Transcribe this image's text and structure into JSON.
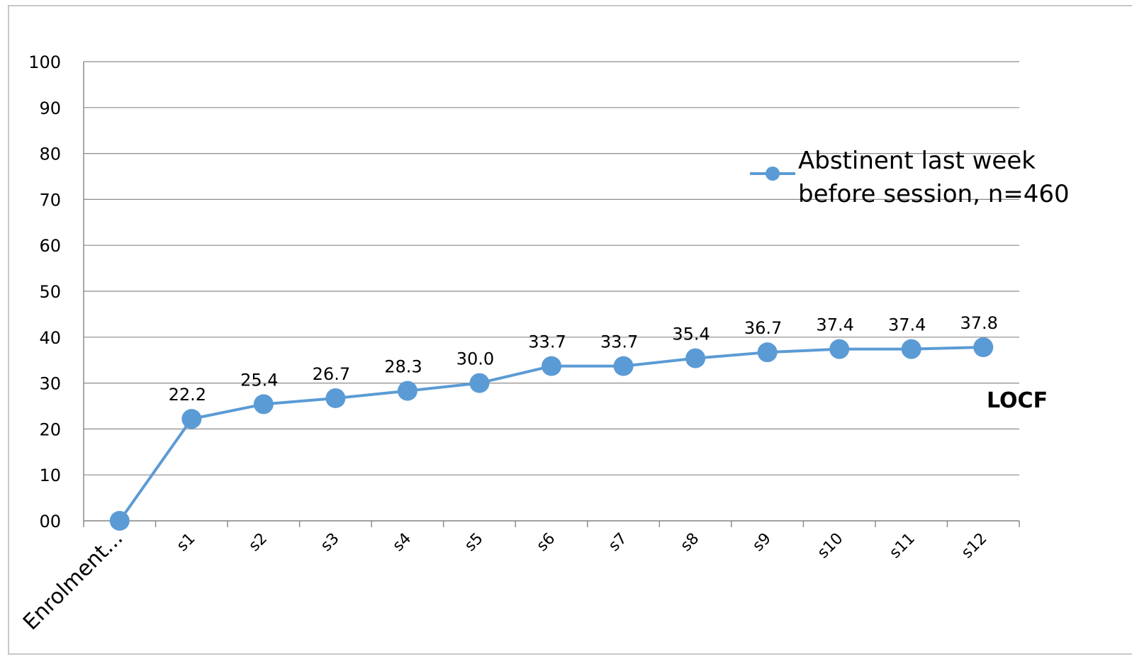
{
  "chart_data": {
    "type": "line",
    "categories": [
      "Enrolment...",
      "s1",
      "s2",
      "s3",
      "s4",
      "s5",
      "s6",
      "s7",
      "s8",
      "s9",
      "s10",
      "s11",
      "s12"
    ],
    "series": [
      {
        "name": "Abstinent last week before session, n=460",
        "values": [
          0,
          22.2,
          25.4,
          26.7,
          28.3,
          30.0,
          33.7,
          33.7,
          35.4,
          36.7,
          37.4,
          37.4,
          37.8
        ],
        "data_labels": [
          "",
          "22.2",
          "25.4",
          "26.7",
          "28.3",
          "30.0",
          "33.7",
          "33.7",
          "35.4",
          "36.7",
          "37.4",
          "37.4",
          "37.8"
        ],
        "color": "#5B9BD5"
      }
    ],
    "y_ticks": [
      "00",
      "10",
      "20",
      "30",
      "40",
      "50",
      "60",
      "70",
      "80",
      "90",
      "100"
    ],
    "ylim": [
      0,
      100
    ],
    "grid": true,
    "legend": {
      "placement": "right",
      "lines": [
        "Abstinent last week",
        "before session, n=460"
      ]
    },
    "annotation": "LOCF",
    "title": "",
    "xlabel": "",
    "ylabel": ""
  }
}
